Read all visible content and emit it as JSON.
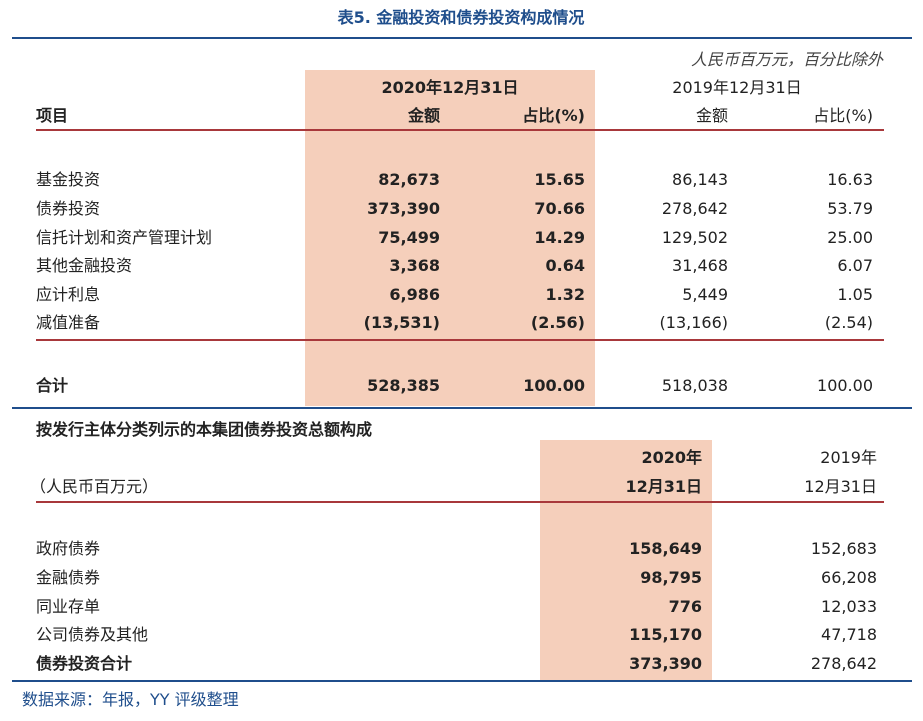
{
  "title": "表5. 金融投资和债券投资构成情况",
  "unit_note": "人民币百万元，百分比除外",
  "table1": {
    "header": {
      "period_current": "2020年12月31日",
      "period_prior": "2019年12月31日",
      "item": "项目",
      "columns": [
        "金额",
        "占比(%)",
        "金额",
        "占比(%)"
      ]
    },
    "rows": [
      [
        "基金投资",
        "82,673",
        "15.65",
        "86,143",
        "16.63"
      ],
      [
        "债券投资",
        "373,390",
        "70.66",
        "278,642",
        "53.79"
      ],
      [
        "信托计划和资产管理计划",
        "75,499",
        "14.29",
        "129,502",
        "25.00"
      ],
      [
        "其他金融投资",
        "3,368",
        "0.64",
        "31,468",
        "6.07"
      ],
      [
        "应计利息",
        "6,986",
        "1.32",
        "5,449",
        "1.05"
      ],
      [
        "减值准备",
        "(13,531)",
        "(2.56)",
        "(13,166)",
        "(2.54)"
      ]
    ],
    "total": [
      "合计",
      "528,385",
      "100.00",
      "518,038",
      "100.00"
    ]
  },
  "table2": {
    "title": "按发行主体分类列示的本集团债券投资总额构成",
    "unit": "（人民币百万元）",
    "header": {
      "current": [
        "2020年",
        "12月31日"
      ],
      "prior": [
        "2019年",
        "12月31日"
      ]
    },
    "rows": [
      [
        "政府债券",
        "158,649",
        "152,683"
      ],
      [
        "金融债券",
        "98,795",
        "66,208"
      ],
      [
        "同业存单",
        "776",
        "12,033"
      ],
      [
        "公司债券及其他",
        "115,170",
        "47,718"
      ],
      [
        "债券投资合计",
        "373,390",
        "278,642"
      ]
    ]
  },
  "source": "数据来源：年报，YY 评级整理"
}
